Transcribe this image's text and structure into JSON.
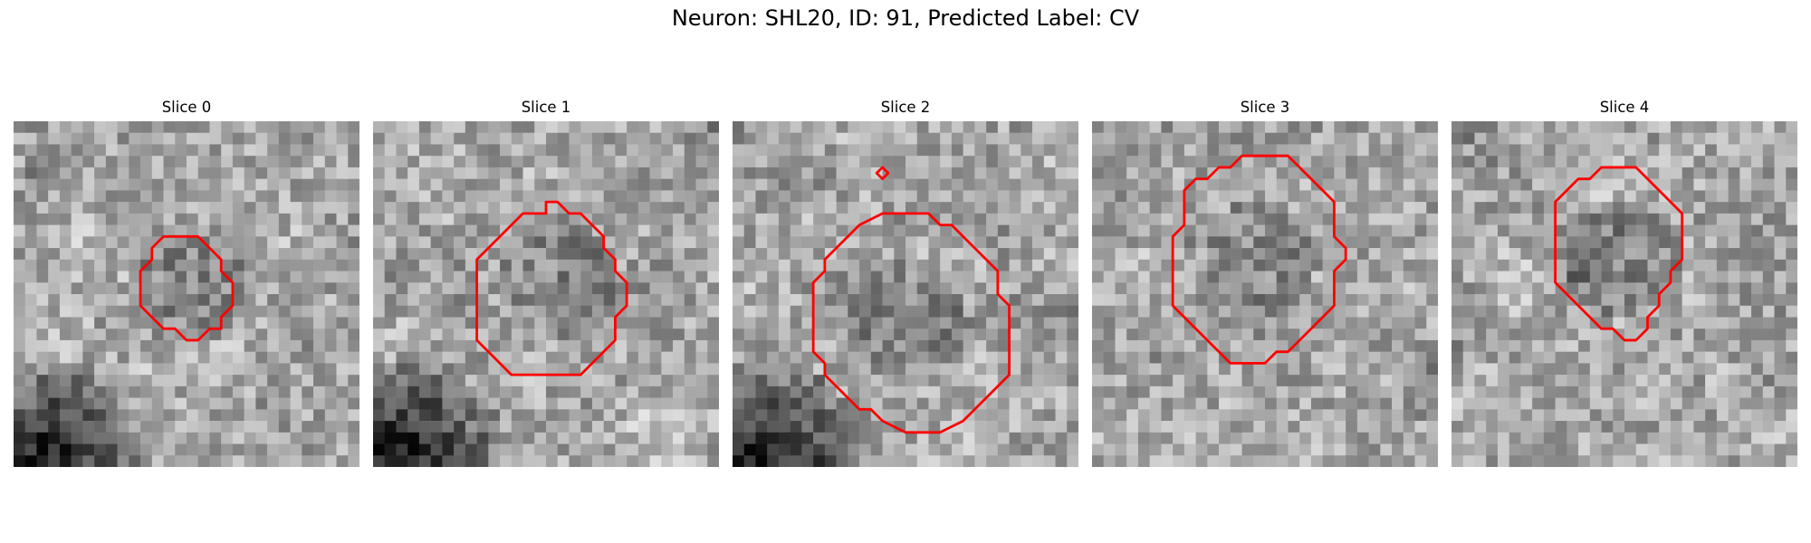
{
  "figure": {
    "title": "Neuron: SHL20, ID: 91, Predicted Label: CV"
  },
  "colors": {
    "outline": "#ff0000",
    "background": "#ffffff"
  },
  "panels": [
    {
      "title": "Slice 0",
      "seed": 11,
      "dark_corner": "bottom-left",
      "contours": [
        [
          [
            12,
            11
          ],
          [
            13,
            10
          ],
          [
            16,
            10
          ],
          [
            17,
            11
          ],
          [
            18,
            12
          ],
          [
            18,
            13
          ],
          [
            19,
            14
          ],
          [
            19,
            16
          ],
          [
            18,
            17
          ],
          [
            18,
            18
          ],
          [
            17,
            18
          ],
          [
            16,
            19
          ],
          [
            15,
            19
          ],
          [
            14,
            18
          ],
          [
            13,
            18
          ],
          [
            12,
            17
          ],
          [
            11,
            16
          ],
          [
            11,
            13
          ],
          [
            12,
            12
          ]
        ]
      ]
    },
    {
      "title": "Slice 1",
      "seed": 23,
      "dark_corner": "bottom-left",
      "contours": [
        [
          [
            9,
            12
          ],
          [
            11,
            10
          ],
          [
            12,
            9
          ],
          [
            13,
            8
          ],
          [
            15,
            8
          ],
          [
            15,
            7
          ],
          [
            16,
            7
          ],
          [
            17,
            8
          ],
          [
            18,
            8
          ],
          [
            19,
            9
          ],
          [
            20,
            10
          ],
          [
            20,
            11
          ],
          [
            21,
            12
          ],
          [
            21,
            13
          ],
          [
            22,
            14
          ],
          [
            22,
            16
          ],
          [
            21,
            17
          ],
          [
            21,
            19
          ],
          [
            20,
            20
          ],
          [
            19,
            21
          ],
          [
            18,
            22
          ],
          [
            12,
            22
          ],
          [
            11,
            21
          ],
          [
            10,
            20
          ],
          [
            9,
            19
          ],
          [
            9,
            13
          ]
        ]
      ]
    },
    {
      "title": "Slice 2",
      "seed": 37,
      "dark_corner": "bottom-left",
      "contours": [
        [
          [
            13,
            4
          ],
          [
            13.5,
            4.5
          ],
          [
            13,
            5
          ],
          [
            12.5,
            4.5
          ]
        ],
        [
          [
            8,
            12
          ],
          [
            9,
            11
          ],
          [
            10,
            10
          ],
          [
            11,
            9
          ],
          [
            13,
            8
          ],
          [
            17,
            8
          ],
          [
            18,
            9
          ],
          [
            19,
            9
          ],
          [
            20,
            10
          ],
          [
            21,
            11
          ],
          [
            22,
            12
          ],
          [
            23,
            13
          ],
          [
            23,
            15
          ],
          [
            24,
            16
          ],
          [
            24,
            22
          ],
          [
            23,
            23
          ],
          [
            22,
            24
          ],
          [
            21,
            25
          ],
          [
            20,
            26
          ],
          [
            18,
            27
          ],
          [
            15,
            27
          ],
          [
            13,
            26
          ],
          [
            12,
            25
          ],
          [
            11,
            25
          ],
          [
            10,
            24
          ],
          [
            9,
            23
          ],
          [
            8,
            22
          ],
          [
            8,
            21
          ],
          [
            7,
            20
          ],
          [
            7,
            14
          ],
          [
            8,
            13
          ]
        ]
      ]
    },
    {
      "title": "Slice 3",
      "seed": 53,
      "dark_corner": "none",
      "contours": [
        [
          [
            8,
            6
          ],
          [
            9,
            5
          ],
          [
            10,
            5
          ],
          [
            11,
            4
          ],
          [
            12,
            4
          ],
          [
            13,
            3
          ],
          [
            17,
            3
          ],
          [
            18,
            4
          ],
          [
            19,
            5
          ],
          [
            20,
            6
          ],
          [
            21,
            7
          ],
          [
            21,
            10
          ],
          [
            22,
            11
          ],
          [
            22,
            12
          ],
          [
            21,
            13
          ],
          [
            21,
            16
          ],
          [
            20,
            17
          ],
          [
            19,
            18
          ],
          [
            18,
            19
          ],
          [
            17,
            20
          ],
          [
            16,
            20
          ],
          [
            15,
            21
          ],
          [
            12,
            21
          ],
          [
            11,
            20
          ],
          [
            10,
            19
          ],
          [
            9,
            18
          ],
          [
            8,
            17
          ],
          [
            7,
            16
          ],
          [
            7,
            10
          ],
          [
            8,
            9
          ]
        ]
      ]
    },
    {
      "title": "Slice 4",
      "seed": 71,
      "dark_corner": "none",
      "contours": [
        [
          [
            9,
            7
          ],
          [
            10,
            6
          ],
          [
            11,
            5
          ],
          [
            12,
            5
          ],
          [
            13,
            4
          ],
          [
            16,
            4
          ],
          [
            17,
            5
          ],
          [
            18,
            6
          ],
          [
            19,
            7
          ],
          [
            20,
            8
          ],
          [
            20,
            12
          ],
          [
            19,
            13
          ],
          [
            19,
            14
          ],
          [
            18,
            15
          ],
          [
            18,
            16
          ],
          [
            17,
            17
          ],
          [
            17,
            18
          ],
          [
            16,
            19
          ],
          [
            15,
            19
          ],
          [
            14,
            18
          ],
          [
            13,
            18
          ],
          [
            12,
            17
          ],
          [
            11,
            16
          ],
          [
            10,
            15
          ],
          [
            9,
            14
          ],
          [
            9,
            8
          ]
        ]
      ]
    }
  ]
}
